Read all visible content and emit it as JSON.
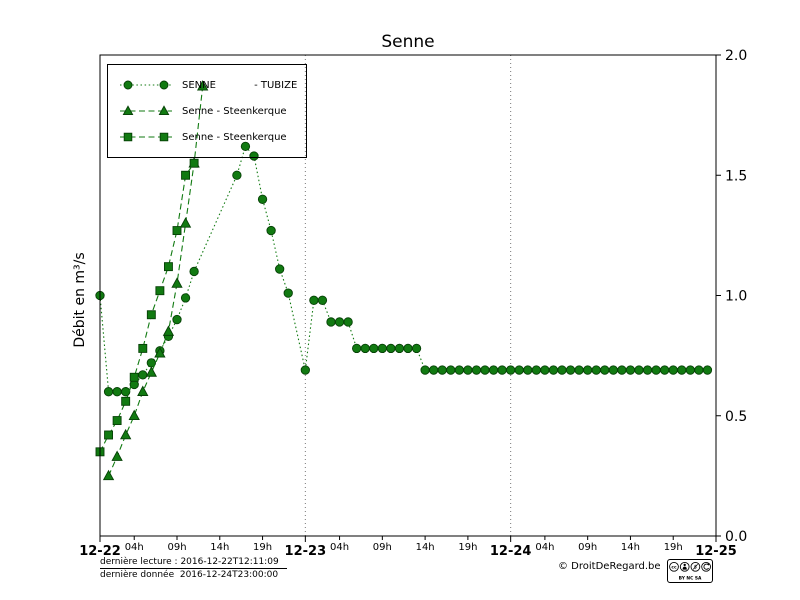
{
  "chart_data": {
    "type": "line",
    "title": "Senne",
    "ylabel": "Débit en m³/s",
    "ylim": [
      0.0,
      2.0
    ],
    "yticks": [
      0.0,
      0.5,
      1.0,
      1.5,
      2.0
    ],
    "xlim_hours": [
      0,
      72
    ],
    "x_major": [
      {
        "hour": 0,
        "label": "12-22"
      },
      {
        "hour": 24,
        "label": "12-23"
      },
      {
        "hour": 48,
        "label": "12-24"
      },
      {
        "hour": 72,
        "label": "12-25"
      }
    ],
    "x_minor": [
      {
        "hour": 4,
        "label": "04h"
      },
      {
        "hour": 9,
        "label": "09h"
      },
      {
        "hour": 14,
        "label": "14h"
      },
      {
        "hour": 19,
        "label": "19h"
      },
      {
        "hour": 28,
        "label": "04h"
      },
      {
        "hour": 33,
        "label": "09h"
      },
      {
        "hour": 38,
        "label": "14h"
      },
      {
        "hour": 43,
        "label": "19h"
      },
      {
        "hour": 52,
        "label": "04h"
      },
      {
        "hour": 57,
        "label": "09h"
      },
      {
        "hour": 62,
        "label": "14h"
      },
      {
        "hour": 67,
        "label": "19h"
      }
    ],
    "gridlines_hours": [
      24,
      48
    ],
    "legend_position": "upper-left",
    "color": "#117a11",
    "marker_edge": "#064006",
    "series": [
      {
        "name": "SENNE - TUBIZE",
        "marker": "circle",
        "line": "dotted",
        "x_hours": [
          0,
          1,
          2,
          3,
          4,
          5,
          6,
          7,
          8,
          9,
          10,
          11,
          16,
          17,
          18,
          19,
          20,
          21,
          22,
          24,
          25,
          26,
          27,
          28,
          29,
          30,
          31,
          32,
          33,
          34,
          35,
          36,
          37,
          38,
          39,
          40,
          41,
          42,
          43,
          44,
          45,
          46,
          47,
          48,
          49,
          50,
          51,
          52,
          53,
          54,
          55,
          56,
          57,
          58,
          59,
          60,
          61,
          62,
          63,
          64,
          65,
          66,
          67,
          68,
          69,
          70,
          71
        ],
        "values": [
          1.0,
          0.6,
          0.6,
          0.6,
          0.63,
          0.67,
          0.72,
          0.77,
          0.83,
          0.9,
          0.99,
          1.1,
          1.5,
          1.62,
          1.58,
          1.4,
          1.27,
          1.11,
          1.01,
          0.69,
          0.98,
          0.98,
          0.89,
          0.89,
          0.89,
          0.78,
          0.78,
          0.78,
          0.78,
          0.78,
          0.78,
          0.78,
          0.78,
          0.69,
          0.69,
          0.69,
          0.69,
          0.69,
          0.69,
          0.69,
          0.69,
          0.69,
          0.69,
          0.69,
          0.69,
          0.69,
          0.69,
          0.69,
          0.69,
          0.69,
          0.69,
          0.69,
          0.69,
          0.69,
          0.69,
          0.69,
          0.69,
          0.69,
          0.69,
          0.69,
          0.69,
          0.69,
          0.69,
          0.69,
          0.69,
          0.69,
          0.69
        ]
      },
      {
        "name": "Senne - Steenkerque",
        "marker": "triangle",
        "line": "dashed",
        "x_hours": [
          1,
          2,
          3,
          4,
          5,
          6,
          7,
          8,
          9,
          10,
          11,
          12
        ],
        "values": [
          0.25,
          0.33,
          0.42,
          0.5,
          0.6,
          0.68,
          0.76,
          0.85,
          1.05,
          1.3,
          1.55,
          1.87
        ]
      },
      {
        "name": "Senne - Steenkerque",
        "marker": "square",
        "line": "dashed",
        "x_hours": [
          0,
          1,
          2,
          3,
          4,
          5,
          6,
          7,
          8,
          9,
          10,
          11
        ],
        "values": [
          0.35,
          0.42,
          0.48,
          0.56,
          0.66,
          0.78,
          0.92,
          1.02,
          1.12,
          1.27,
          1.5,
          1.55
        ]
      }
    ]
  },
  "legend": {
    "items": [
      {
        "label": "SENNE            - TUBIZE",
        "marker": "circle",
        "line": "dotted"
      },
      {
        "label": "Senne - Steenkerque",
        "marker": "triangle",
        "line": "dashed"
      },
      {
        "label": "Senne - Steenkerque",
        "marker": "square",
        "line": "dashed"
      }
    ]
  },
  "footer": {
    "last_reading": "dernière lecture : 2016-12-22T12:11:09",
    "last_data": "dernière donnée  2016-12-24T23:00:00",
    "copyright": "© DroitDeRegard.be",
    "license_badge": {
      "icons": [
        "cc",
        "by",
        "nc",
        "sa"
      ],
      "labels": "BY  NC  SA"
    }
  }
}
